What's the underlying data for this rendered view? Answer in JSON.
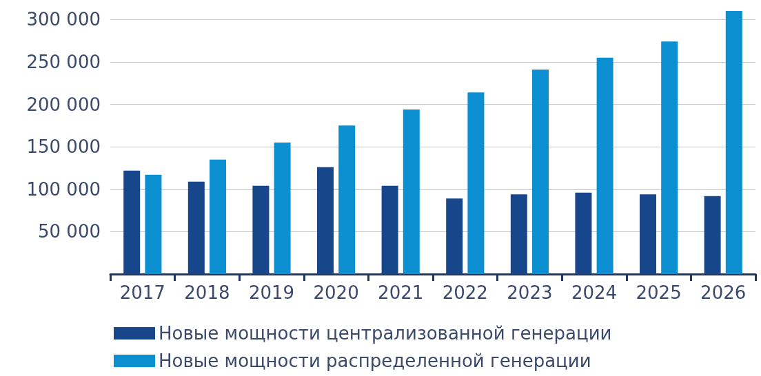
{
  "chart_data": {
    "type": "bar",
    "categories": [
      "2017",
      "2018",
      "2019",
      "2020",
      "2021",
      "2022",
      "2023",
      "2024",
      "2025",
      "2026"
    ],
    "series": [
      {
        "name": "Новые мощности централизованной генерации",
        "color": "#17468a",
        "values": [
          122000,
          109000,
          104000,
          126000,
          104000,
          89000,
          94000,
          96000,
          94000,
          92000
        ]
      },
      {
        "name": "Новые мощности распределенной генерации",
        "color": "#0b8fd1",
        "values": [
          117000,
          135000,
          155000,
          175000,
          194000,
          214000,
          241000,
          255000,
          274000,
          310000
        ]
      }
    ],
    "ylim": [
      0,
      310000
    ],
    "yticks": [
      {
        "value": 50000,
        "label": "50 000"
      },
      {
        "value": 100000,
        "label": "100 000"
      },
      {
        "value": 150000,
        "label": "150 000"
      },
      {
        "value": 200000,
        "label": "200 000"
      },
      {
        "value": 250000,
        "label": "250 000"
      },
      {
        "value": 300000,
        "label": "300 000"
      }
    ],
    "grid": "y",
    "legend": "bottom"
  }
}
